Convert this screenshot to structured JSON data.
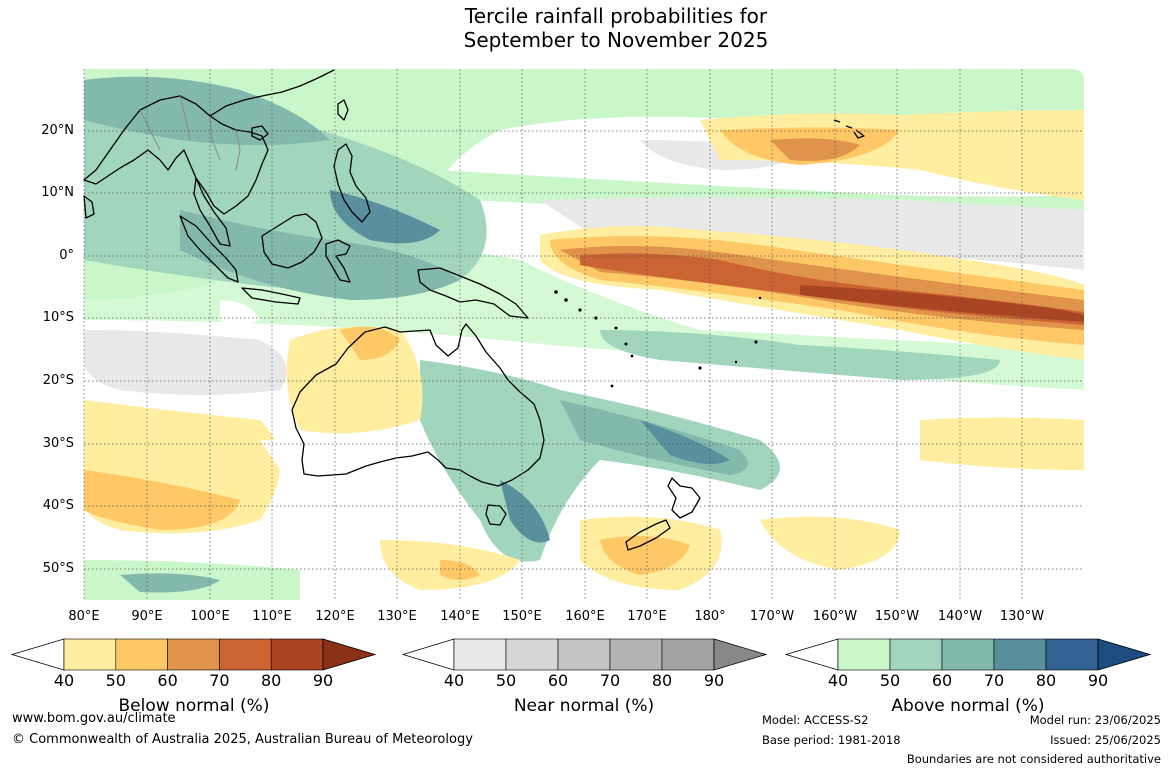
{
  "title": {
    "line1": "Tercile rainfall probabilities for",
    "line2": "September to November 2025"
  },
  "map": {
    "latitude_labels": [
      "20°N",
      "10°N",
      "0°",
      "10°S",
      "20°S",
      "30°S",
      "40°S",
      "50°S"
    ],
    "longitude_labels": [
      "80°E",
      "90°E",
      "100°E",
      "110°E",
      "120°E",
      "130°E",
      "140°E",
      "150°E",
      "160°E",
      "170°E",
      "180°",
      "170°W",
      "160°W",
      "150°W",
      "140°W",
      "130°W"
    ]
  },
  "legends": [
    {
      "name": "below",
      "title": "Below normal (%)",
      "ticks": [
        "40",
        "50",
        "60",
        "70",
        "80",
        "90"
      ],
      "colors": [
        "#ffeea0",
        "#fdc865",
        "#e0934b",
        "#cb6332",
        "#a94522",
        "#8b3117"
      ]
    },
    {
      "name": "near",
      "title": "Near normal (%)",
      "ticks": [
        "40",
        "50",
        "60",
        "70",
        "80",
        "90"
      ],
      "colors": [
        "#e8e8e8",
        "#d6d6d6",
        "#c4c4c4",
        "#b3b3b3",
        "#a2a2a2",
        "#888888"
      ]
    },
    {
      "name": "above",
      "title": "Above normal (%)",
      "ticks": [
        "40",
        "50",
        "60",
        "70",
        "80",
        "90"
      ],
      "colors": [
        "#c9f7c9",
        "#a1d6bd",
        "#83b8ad",
        "#5a8f9e",
        "#336193",
        "#1d4c80"
      ]
    }
  ],
  "footer": {
    "website": "www.bom.gov.au/climate",
    "copyright": "© Commonwealth of Australia 2025, Australian Bureau of Meteorology",
    "model": "Model: ACCESS-S2",
    "base_period": "Base period: 1981-2018",
    "model_run": "Model run: 23/06/2025",
    "issued": "Issued: 25/06/2025",
    "disclaimer": "Boundaries are not considered authoritative"
  }
}
